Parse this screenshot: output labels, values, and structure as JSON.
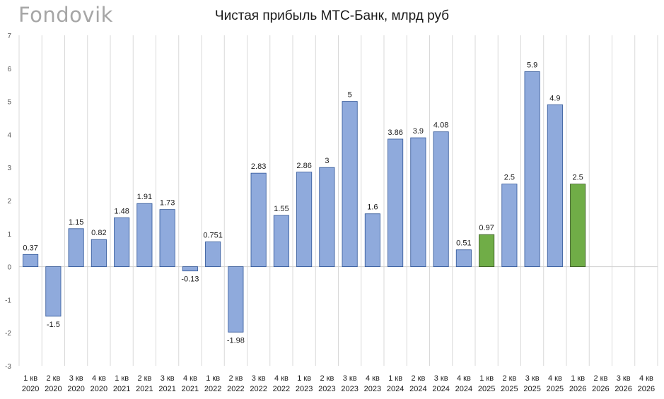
{
  "watermark": "Fondovik",
  "chart_data": {
    "type": "bar",
    "title": "Чистая прибыль МТС-Банк, млрд руб",
    "xlabel": "",
    "ylabel": "",
    "ylim": [
      -3,
      7
    ],
    "yticks": [
      -3,
      -2,
      -1,
      0,
      1,
      2,
      3,
      4,
      5,
      6,
      7
    ],
    "grid": true,
    "legend": "none",
    "categories": [
      [
        "1 кв",
        "2020"
      ],
      [
        "2 кв",
        "2020"
      ],
      [
        "3 кв",
        "2020"
      ],
      [
        "4 кв",
        "2020"
      ],
      [
        "1 кв",
        "2021"
      ],
      [
        "2 кв",
        "2021"
      ],
      [
        "3 кв",
        "2021"
      ],
      [
        "4 кв",
        "2021"
      ],
      [
        "1 кв",
        "2022"
      ],
      [
        "2 кв",
        "2022"
      ],
      [
        "3 кв",
        "2022"
      ],
      [
        "4 кв",
        "2022"
      ],
      [
        "1 кв",
        "2023"
      ],
      [
        "2 кв",
        "2023"
      ],
      [
        "3 кв",
        "2023"
      ],
      [
        "4 кв",
        "2023"
      ],
      [
        "1 кв",
        "2024"
      ],
      [
        "2 кв",
        "2024"
      ],
      [
        "3 кв",
        "2024"
      ],
      [
        "4 кв",
        "2024"
      ],
      [
        "1 кв",
        "2025"
      ],
      [
        "2 кв",
        "2025"
      ],
      [
        "3 кв",
        "2025"
      ],
      [
        "4 кв",
        "2025"
      ],
      [
        "1 кв",
        "2026"
      ],
      [
        "2 кв",
        "2026"
      ],
      [
        "3 кв",
        "2026"
      ],
      [
        "4 кв",
        "2026"
      ]
    ],
    "values": [
      0.37,
      -1.5,
      1.15,
      0.82,
      1.48,
      1.91,
      1.73,
      -0.13,
      0.751,
      -1.98,
      2.83,
      1.55,
      2.86,
      3,
      5,
      1.6,
      3.86,
      3.9,
      4.08,
      0.51,
      0.97,
      2.5,
      5.9,
      4.9,
      2.5,
      null,
      null,
      null
    ],
    "labels": [
      "0.37",
      "-1.5",
      "1.15",
      "0.82",
      "1.48",
      "1.91",
      "1.73",
      "-0.13",
      "0.751",
      "-1.98",
      "2.83",
      "1.55",
      "2.86",
      "3",
      "5",
      "1.6",
      "3.86",
      "3.9",
      "4.08",
      "0.51",
      "0.97",
      "2.5",
      "5.9",
      "4.9",
      "2.5",
      "",
      "",
      ""
    ],
    "highlight": [
      false,
      false,
      false,
      false,
      false,
      false,
      false,
      false,
      false,
      false,
      false,
      false,
      false,
      false,
      false,
      false,
      false,
      false,
      false,
      false,
      true,
      false,
      false,
      false,
      true,
      false,
      false,
      false
    ],
    "colors": {
      "bar": "#8faadc",
      "bar_border": "#2f5597",
      "highlight": "#70ad47",
      "highlight_border": "#375623"
    }
  }
}
